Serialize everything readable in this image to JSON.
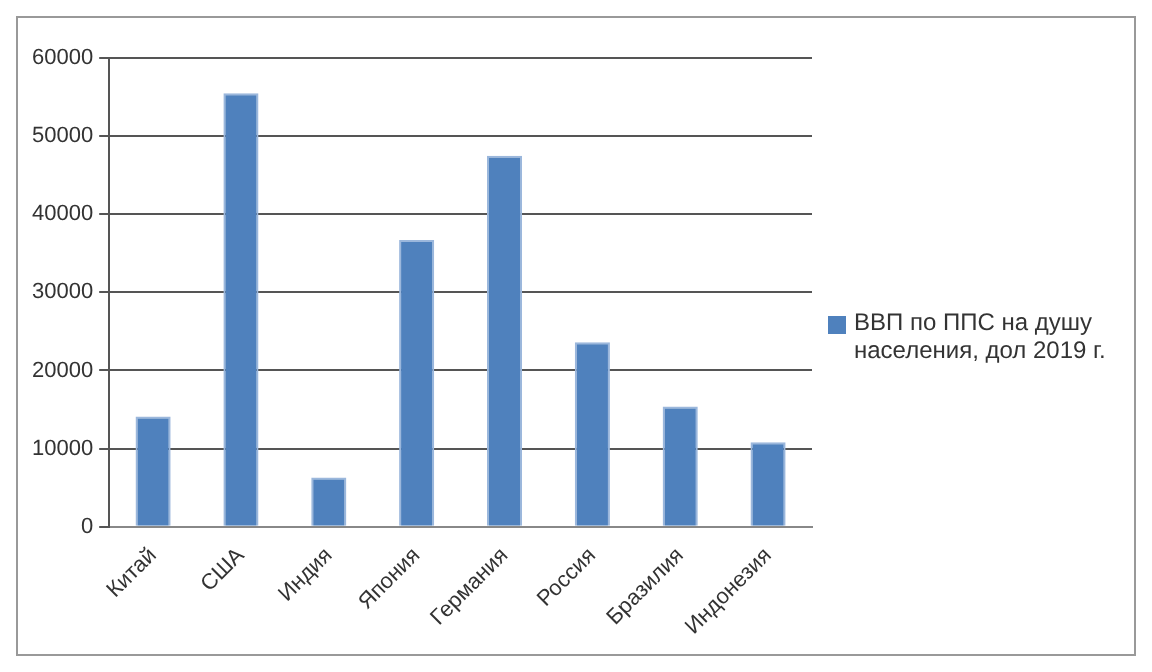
{
  "chart_data": {
    "type": "bar",
    "categories": [
      "Китай",
      "США",
      "Индия",
      "Япония",
      "Германия",
      "Россия",
      "Бразилия",
      "Индонезия"
    ],
    "series": [
      {
        "name": "ВВП по ППС на душу населения, дол 2019 г.",
        "color": "#4f81bd",
        "values": [
          14100,
          55500,
          6300,
          36700,
          47500,
          23600,
          15400,
          10800
        ]
      }
    ],
    "ylim": [
      0,
      60000
    ],
    "yticks": [
      0,
      10000,
      20000,
      30000,
      40000,
      50000,
      60000
    ],
    "grid": "y",
    "legend": "right"
  }
}
